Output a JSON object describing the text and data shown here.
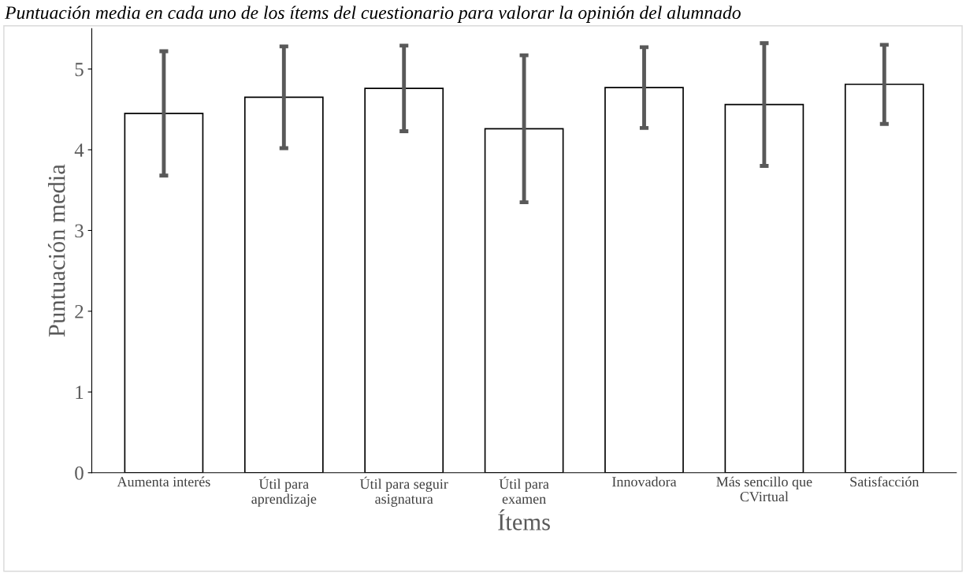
{
  "chart_data": {
    "type": "bar",
    "title": "Puntuación media en cada uno de los ítems del cuestionario para valorar la opinión del alumnado",
    "xlabel": "Ítems",
    "ylabel": "Puntuación media",
    "categories": [
      "Aumenta interés",
      "Útil para\naprendizaje",
      "Útil para seguir\nasignatura",
      "Útil para\nexamen",
      "Innovadora",
      "Más sencillo que\nCVirtual",
      "Satisfacción"
    ],
    "values": [
      4.45,
      4.65,
      4.76,
      4.26,
      4.77,
      4.56,
      4.81
    ],
    "errors": [
      0.77,
      0.63,
      0.53,
      0.91,
      0.5,
      0.76,
      0.49
    ],
    "color": "#ffffff",
    "ylim": [
      0,
      5.5
    ],
    "yticks": [
      0,
      1,
      2,
      3,
      4,
      5
    ],
    "grid": false,
    "legend": false
  }
}
